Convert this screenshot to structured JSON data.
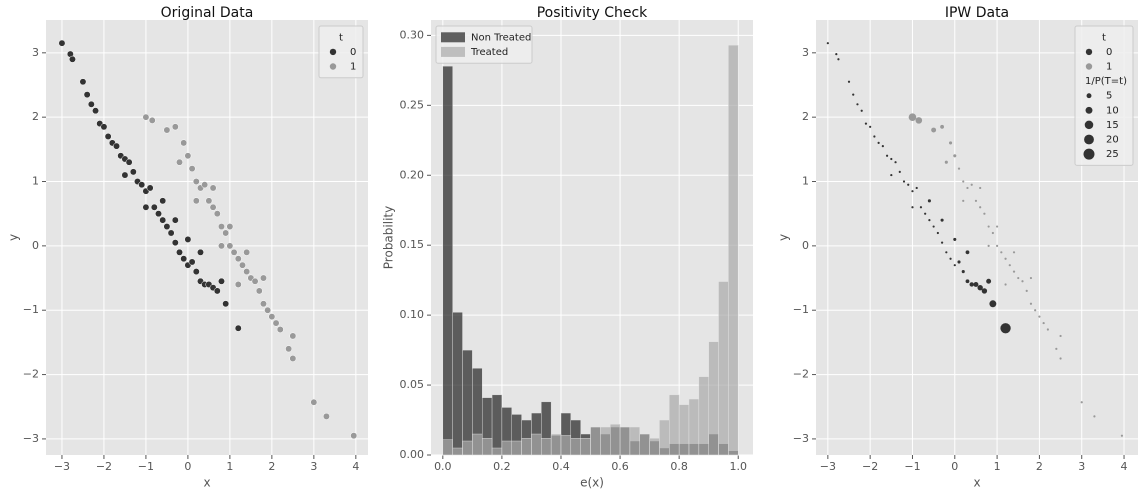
{
  "chart_data": [
    {
      "type": "scatter",
      "title": "Original Data",
      "x_label": "x",
      "y_label": "y",
      "xlim": [
        -3.38,
        4.29
      ],
      "ylim": [
        -3.25,
        3.51
      ],
      "xticks": [
        {
          "value": -3,
          "label": "−3"
        },
        {
          "value": -2,
          "label": "−2"
        },
        {
          "value": -1,
          "label": "−1"
        },
        0,
        1,
        2,
        3,
        4
      ],
      "yticks": [
        {
          "value": -3,
          "label": "−3"
        },
        {
          "value": -2,
          "label": "−2"
        },
        {
          "value": -1,
          "label": "−1"
        },
        0,
        1,
        2,
        3
      ],
      "grid": true,
      "legend": "upper right",
      "legend_title": "t",
      "series": [
        {
          "name": "0",
          "color": "#333333",
          "x": [
            -3.0,
            -2.8,
            -2.75,
            -2.5,
            -2.4,
            -2.3,
            -2.2,
            -2.1,
            -2.0,
            -1.9,
            -1.8,
            -1.7,
            -1.6,
            -1.5,
            -1.4,
            -1.3,
            -1.2,
            -1.1,
            -1.0,
            -0.9,
            -0.8,
            -0.7,
            -0.6,
            -0.5,
            -0.4,
            -0.3,
            -0.2,
            -0.1,
            0.0,
            0.1,
            0.2,
            0.3,
            0.4,
            0.5,
            0.6,
            0.7,
            0.8,
            0.9,
            1.2,
            -1.5,
            -1.0,
            -0.6,
            -0.3,
            0.0,
            0.3
          ],
          "values": [
            3.15,
            2.98,
            2.9,
            2.55,
            2.35,
            2.2,
            2.1,
            1.9,
            1.85,
            1.7,
            1.6,
            1.55,
            1.4,
            1.35,
            1.3,
            1.15,
            1.0,
            0.95,
            0.85,
            0.9,
            0.6,
            0.5,
            0.4,
            0.3,
            0.2,
            0.05,
            -0.1,
            -0.2,
            -0.3,
            -0.25,
            -0.4,
            -0.55,
            -0.6,
            -0.6,
            -0.65,
            -0.7,
            -0.55,
            -0.9,
            -1.28,
            1.1,
            0.6,
            0.7,
            0.4,
            0.1,
            -0.1
          ]
        },
        {
          "name": "1",
          "color": "#999999",
          "x": [
            -1.0,
            -0.85,
            -0.5,
            -0.3,
            -0.1,
            0.0,
            -0.2,
            0.1,
            0.2,
            0.3,
            0.4,
            0.5,
            0.6,
            0.7,
            0.8,
            0.9,
            1.0,
            1.1,
            1.2,
            1.3,
            1.4,
            1.5,
            1.6,
            1.7,
            1.8,
            1.9,
            2.0,
            2.1,
            2.2,
            2.4,
            2.5,
            2.5,
            3.0,
            3.3,
            3.95,
            0.2,
            0.6,
            1.0,
            1.4,
            1.8,
            0.8,
            1.2
          ],
          "values": [
            2.0,
            1.95,
            1.8,
            1.85,
            1.6,
            1.4,
            1.3,
            1.2,
            1.0,
            0.9,
            0.95,
            0.7,
            0.6,
            0.5,
            0.3,
            0.2,
            0.0,
            -0.1,
            -0.2,
            -0.3,
            -0.4,
            -0.5,
            -0.55,
            -0.7,
            -0.9,
            -1.0,
            -1.1,
            -1.2,
            -1.3,
            -1.6,
            -1.75,
            -1.4,
            -2.43,
            -2.65,
            -2.95,
            0.7,
            0.9,
            0.3,
            -0.1,
            -0.5,
            0.0,
            -0.6
          ]
        }
      ]
    },
    {
      "type": "histogram",
      "title": "Positivity Check",
      "x_label": "e(x)",
      "y_label": "Probability",
      "xlim": [
        -0.04,
        1.05
      ],
      "ylim": [
        0,
        0.311
      ],
      "xticks": [
        {
          "value": 0,
          "label": "0.0"
        },
        0.2,
        0.4,
        0.6,
        0.8,
        {
          "value": 1,
          "label": "1.0"
        }
      ],
      "yticks": [
        {
          "value": 0,
          "label": "0.00"
        },
        0.05,
        {
          "value": 0.1,
          "label": "0.10"
        },
        0.15,
        {
          "value": 0.2,
          "label": "0.20"
        },
        0.25,
        {
          "value": 0.3,
          "label": "0.30"
        }
      ],
      "grid": true,
      "legend": "upper left",
      "bins": [
        0,
        0.0333,
        0.0667,
        0.1,
        0.1333,
        0.1667,
        0.2,
        0.2333,
        0.2667,
        0.3,
        0.3333,
        0.3667,
        0.4,
        0.4333,
        0.4667,
        0.5,
        0.5333,
        0.5667,
        0.6,
        0.6333,
        0.6667,
        0.7,
        0.7333,
        0.7667,
        0.8,
        0.8333,
        0.8667,
        0.9,
        0.9333,
        0.9667,
        1
      ],
      "series": [
        {
          "name": "Non Treated",
          "color": "#222222",
          "values": [
            0.278,
            0.102,
            0.075,
            0.062,
            0.041,
            0.043,
            0.034,
            0.029,
            0.025,
            0.03,
            0.038,
            0.014,
            0.03,
            0.025,
            0.015,
            0.02,
            0.015,
            0.02,
            0.02,
            0.01,
            0.015,
            0.01,
            0.005,
            0.008,
            0.008,
            0.008,
            0.008,
            0.015,
            0.008,
            0.003
          ]
        },
        {
          "name": "Treated",
          "color": "#aaaaaa",
          "values": [
            0.011,
            0.005,
            0.01,
            0.015,
            0.012,
            0.005,
            0.01,
            0.01,
            0.012,
            0.015,
            0.012,
            0.015,
            0.014,
            0.012,
            0.012,
            0.02,
            0.02,
            0.022,
            0.02,
            0.02,
            0.015,
            0.012,
            0.025,
            0.043,
            0.036,
            0.04,
            0.056,
            0.081,
            0.124,
            0.293
          ]
        }
      ]
    },
    {
      "type": "scatter",
      "title": "IPW Data",
      "x_label": "x",
      "y_label": "y",
      "xlim": [
        -3.28,
        4.33
      ],
      "ylim": [
        -3.25,
        3.51
      ],
      "xticks": [
        {
          "value": -3,
          "label": "−3"
        },
        {
          "value": -2,
          "label": "−2"
        },
        {
          "value": -1,
          "label": "−1"
        },
        0,
        1,
        2,
        3,
        4
      ],
      "yticks": [
        {
          "value": -3,
          "label": "−3"
        },
        {
          "value": -2,
          "label": "−2"
        },
        {
          "value": -1,
          "label": "−1"
        },
        0,
        1,
        2,
        3
      ],
      "grid": true,
      "legend": "upper right",
      "legend_title": "t",
      "size_legend": {
        "title": "1/P(T=t)",
        "sizes": [
          5,
          10,
          15,
          20,
          25
        ]
      },
      "series": [
        {
          "name": "0",
          "color": "#333333",
          "x": [
            -3.0,
            -2.8,
            -2.75,
            -2.5,
            -2.4,
            -2.3,
            -2.2,
            -2.1,
            -2.0,
            -1.9,
            -1.8,
            -1.7,
            -1.6,
            -1.5,
            -1.4,
            -1.3,
            -1.2,
            -1.1,
            -1.0,
            -0.9,
            -0.8,
            -0.7,
            -0.6,
            -0.5,
            -0.4,
            -0.3,
            -0.2,
            -0.1,
            0.0,
            0.1,
            0.2,
            0.3,
            0.4,
            0.5,
            0.6,
            0.7,
            0.8,
            0.9,
            1.2,
            -1.5,
            -1.0,
            -0.6,
            -0.3,
            0.0,
            0.3
          ],
          "values": [
            3.15,
            2.98,
            2.9,
            2.55,
            2.35,
            2.2,
            2.1,
            1.9,
            1.85,
            1.7,
            1.6,
            1.55,
            1.4,
            1.35,
            1.3,
            1.15,
            1.0,
            0.95,
            0.85,
            0.9,
            0.6,
            0.5,
            0.4,
            0.3,
            0.2,
            0.05,
            -0.1,
            -0.2,
            -0.3,
            -0.25,
            -0.4,
            -0.55,
            -0.6,
            -0.6,
            -0.65,
            -0.7,
            -0.55,
            -0.9,
            -1.28,
            1.1,
            0.6,
            0.7,
            0.4,
            0.1,
            -0.1
          ],
          "sizes": [
            1,
            1,
            1,
            1,
            1,
            1,
            1,
            1,
            1,
            1,
            1,
            1,
            1,
            1,
            1,
            1,
            1,
            1,
            1,
            1,
            1,
            1,
            1,
            1,
            1,
            1,
            1,
            1,
            1,
            2,
            2,
            3,
            4,
            5,
            6,
            6,
            5,
            10,
            22,
            1,
            1,
            2,
            2,
            2,
            3
          ]
        },
        {
          "name": "1",
          "color": "#999999",
          "x": [
            -1.0,
            -0.85,
            -0.5,
            -0.3,
            -0.1,
            0.0,
            -0.2,
            0.1,
            0.2,
            0.3,
            0.4,
            0.5,
            0.6,
            0.7,
            0.8,
            0.9,
            1.0,
            1.1,
            1.2,
            1.3,
            1.4,
            1.5,
            1.6,
            1.7,
            1.8,
            1.9,
            2.0,
            2.1,
            2.2,
            2.4,
            2.5,
            2.5,
            3.0,
            3.3,
            3.95,
            0.2,
            0.6,
            1.0,
            1.4,
            1.8,
            0.8,
            1.2
          ],
          "values": [
            2.0,
            1.95,
            1.8,
            1.85,
            1.6,
            1.4,
            1.3,
            1.2,
            1.0,
            0.9,
            0.95,
            0.7,
            0.6,
            0.5,
            0.3,
            0.2,
            0.0,
            -0.1,
            -0.2,
            -0.3,
            -0.4,
            -0.5,
            -0.55,
            -0.7,
            -0.9,
            -1.0,
            -1.1,
            -1.2,
            -1.3,
            -1.6,
            -1.75,
            -1.4,
            -2.43,
            -2.65,
            -2.95,
            0.7,
            0.9,
            0.3,
            -0.1,
            -0.5,
            0.0,
            -0.6
          ],
          "sizes": [
            12,
            9,
            5,
            3,
            2,
            2,
            2,
            1,
            1,
            1,
            1,
            1,
            1,
            1,
            1,
            1,
            1,
            1,
            1,
            1,
            1,
            1,
            1,
            1,
            1,
            1,
            1,
            1,
            1,
            1,
            1,
            1,
            1,
            1,
            1,
            1,
            1,
            1,
            1,
            1,
            1,
            1
          ]
        }
      ]
    }
  ]
}
